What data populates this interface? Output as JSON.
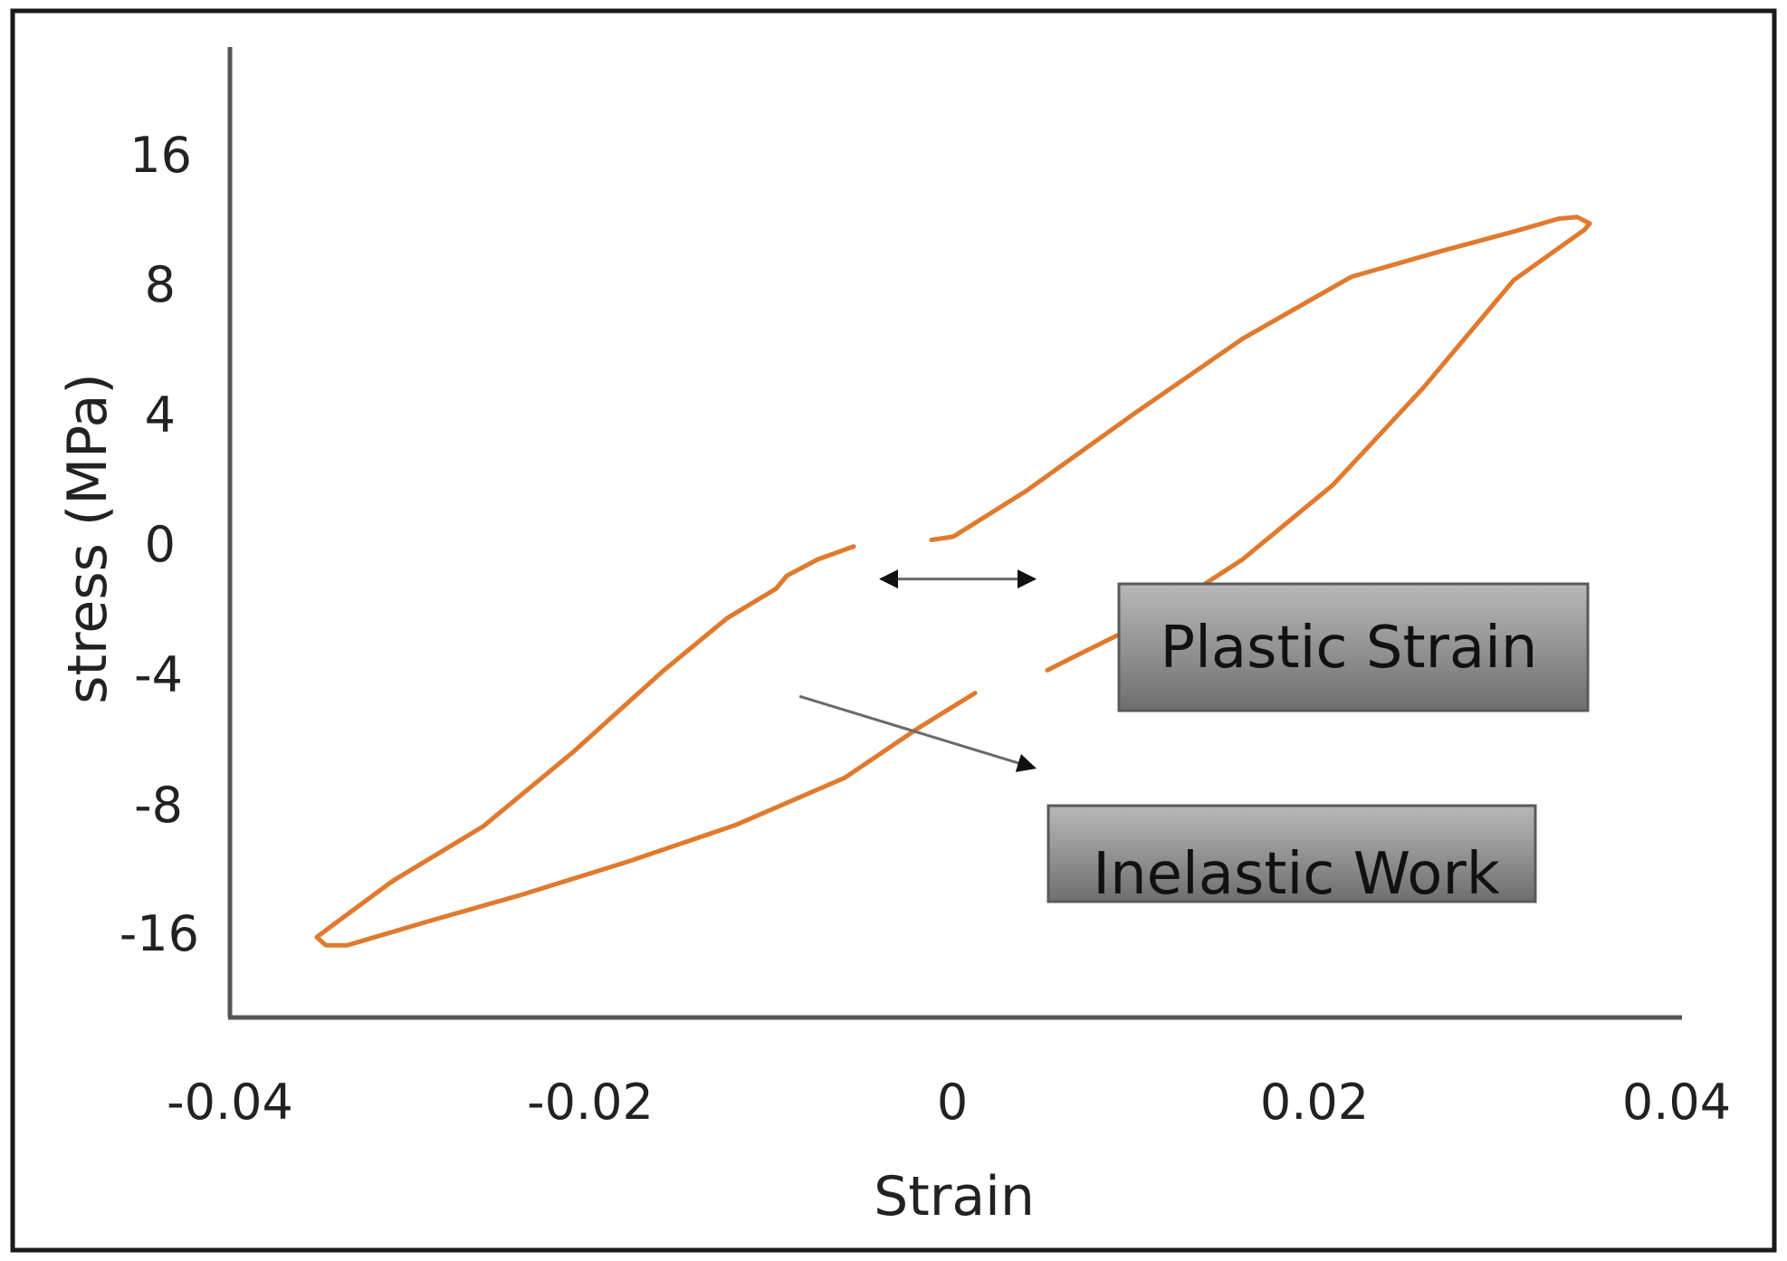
{
  "chart_data": {
    "type": "line",
    "xlabel": "Strain",
    "ylabel": "stress (MPa)",
    "x_ticks": [
      -0.04,
      -0.02,
      0,
      0.02,
      0.04
    ],
    "x_tick_labels": [
      "-0.04",
      "-0.02",
      "0",
      "0.02",
      "0.04"
    ],
    "y_tick_labels": [
      "16",
      "8",
      "4",
      "0",
      "-4",
      "-8",
      "-16"
    ],
    "xlim": [
      -0.04,
      0.04
    ],
    "grid": false,
    "legend": "none",
    "line_color": "#e07a2e",
    "series": [
      {
        "segments": [
          {
            "x": [
              0.0,
              0.004,
              0.01,
              0.016,
              0.022,
              0.027,
              0.031,
              0.0335,
              0.0345,
              0.0352,
              0.0349
            ],
            "y": [
              0.2,
              1.6,
              4.0,
              6.3,
              8.4,
              10.0,
              11.2,
              12.0,
              12.1,
              11.7,
              11.3
            ]
          },
          {
            "x": [
              0.0349,
              0.031,
              0.026,
              0.021,
              0.016,
              0.011,
              0.007,
              0.0052
            ],
            "y": [
              11.3,
              8.2,
              4.8,
              1.8,
              -0.5,
              -2.3,
              -3.4,
              -3.9
            ]
          },
          {
            "x": [
              0.0012,
              -0.002,
              -0.006,
              -0.012,
              -0.018,
              -0.024,
              -0.029,
              -0.032,
              -0.0335,
              -0.0347,
              -0.0352,
              -0.0345
            ],
            "y": [
              -4.6,
              -5.7,
              -7.2,
              -9.3,
              -11.6,
              -13.7,
              -15.3,
              -16.3,
              -16.8,
              -16.8,
              -16.3,
              -15.7
            ]
          },
          {
            "x": [
              -0.0345,
              -0.031,
              -0.026,
              -0.021,
              -0.016,
              -0.0125,
              -0.0098,
              -0.0092,
              -0.0075,
              -0.0055
            ],
            "y": [
              -15.7,
              -12.8,
              -9.4,
              -6.4,
              -3.9,
              -2.3,
              -1.4,
              -1.0,
              -0.5,
              -0.1
            ]
          },
          {
            "x": [
              -0.0012,
              0.0
            ],
            "y": [
              0.1,
              0.2
            ]
          }
        ]
      }
    ],
    "annotations": [
      {
        "text": "Plastic Strain",
        "arrow": "double-headed",
        "from": [
          -0.004,
          -1.1
        ],
        "to": [
          0.0045,
          -1.1
        ]
      },
      {
        "text": "Inelastic Work",
        "arrow": "single",
        "from": [
          -0.0085,
          -4.7
        ],
        "to": [
          0.0045,
          -6.9
        ]
      }
    ]
  }
}
